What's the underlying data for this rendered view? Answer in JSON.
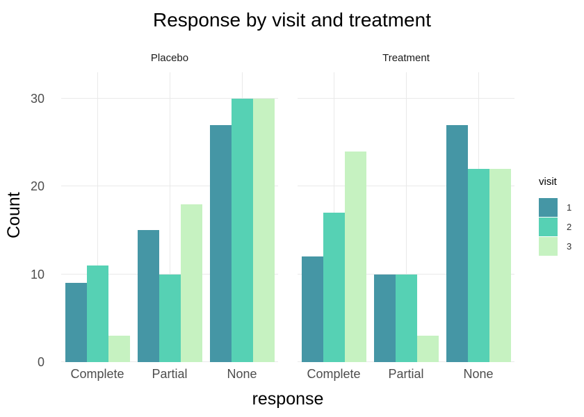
{
  "chart_data": {
    "type": "bar",
    "title": "Response by visit and treatment",
    "xlabel": "response",
    "ylabel": "Count",
    "categories": [
      "Complete",
      "Partial",
      "None"
    ],
    "facets": [
      {
        "label": "Placebo",
        "series": [
          {
            "name": "1",
            "values": [
              9,
              15,
              27
            ]
          },
          {
            "name": "2",
            "values": [
              11,
              10,
              30
            ]
          },
          {
            "name": "3",
            "values": [
              3,
              18,
              30
            ]
          }
        ]
      },
      {
        "label": "Treatment",
        "series": [
          {
            "name": "1",
            "values": [
              12,
              10,
              27
            ]
          },
          {
            "name": "2",
            "values": [
              17,
              10,
              22
            ]
          },
          {
            "name": "3",
            "values": [
              24,
              3,
              22
            ]
          }
        ]
      }
    ],
    "legend": {
      "title": "visit",
      "entries": [
        "1",
        "2",
        "3"
      ],
      "position": "right"
    },
    "colors": [
      "#4596a5",
      "#56d1b4",
      "#c6f2c1"
    ],
    "ylim": [
      0,
      33
    ],
    "yticks": [
      0,
      10,
      20,
      30
    ],
    "grid": true,
    "gridline_color": "#e9e9e9",
    "axis_text_color": "#4d4d4d",
    "background": "#ffffff"
  }
}
